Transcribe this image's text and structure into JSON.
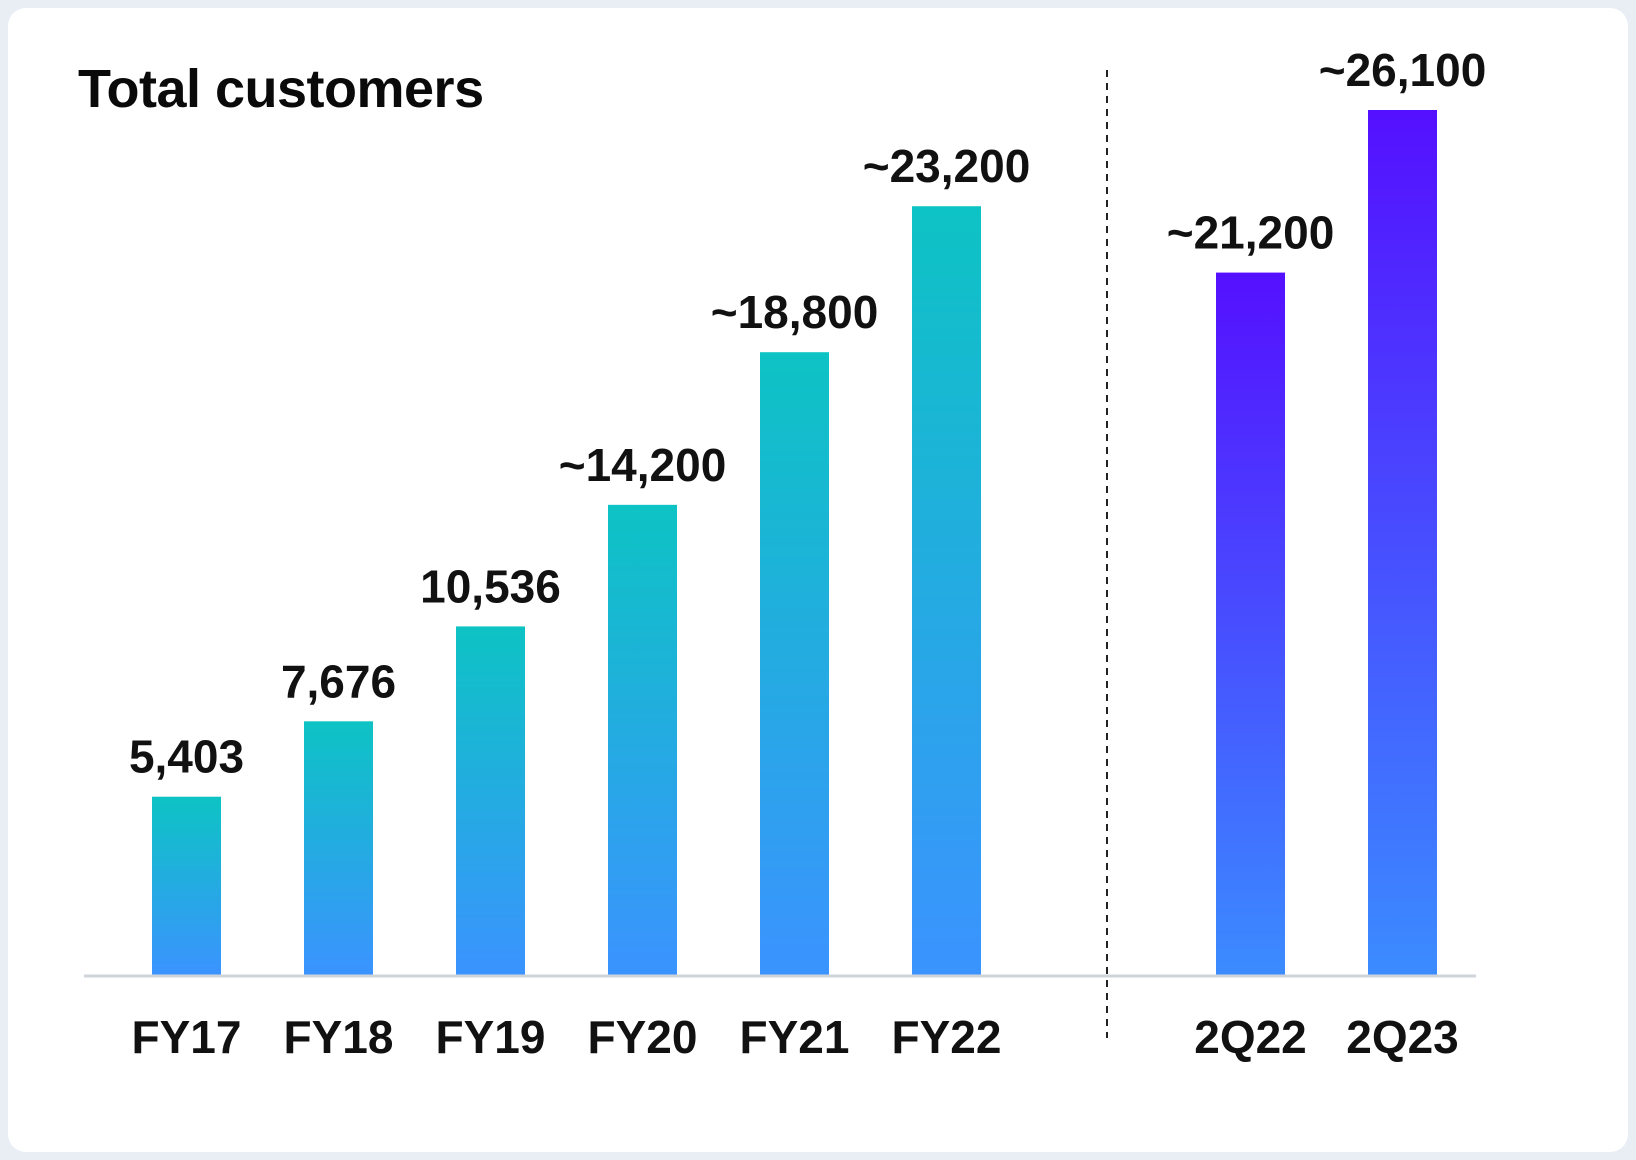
{
  "chart_data": {
    "type": "bar",
    "title": "Total customers",
    "xlabel": "",
    "ylabel": "",
    "ylim": [
      0,
      26100
    ],
    "grid": false,
    "groups": [
      {
        "name": "fiscal-years",
        "color_top": "#0dc3c4",
        "color_bottom": "#3b93ff",
        "bars": [
          {
            "category": "FY17",
            "value": 5403,
            "label": "5,403"
          },
          {
            "category": "FY18",
            "value": 7676,
            "label": "7,676"
          },
          {
            "category": "FY19",
            "value": 10536,
            "label": "10,536"
          },
          {
            "category": "FY20",
            "value": 14200,
            "label": "~14,200"
          },
          {
            "category": "FY21",
            "value": 18800,
            "label": "~18,800"
          },
          {
            "category": "FY22",
            "value": 23200,
            "label": "~23,200"
          }
        ]
      },
      {
        "name": "quarters",
        "color_top": "#5410ff",
        "color_bottom": "#3b8cff",
        "bars": [
          {
            "category": "2Q22",
            "value": 21200,
            "label": "~21,200"
          },
          {
            "category": "2Q23",
            "value": 26100,
            "label": "~26,100"
          }
        ]
      }
    ]
  }
}
